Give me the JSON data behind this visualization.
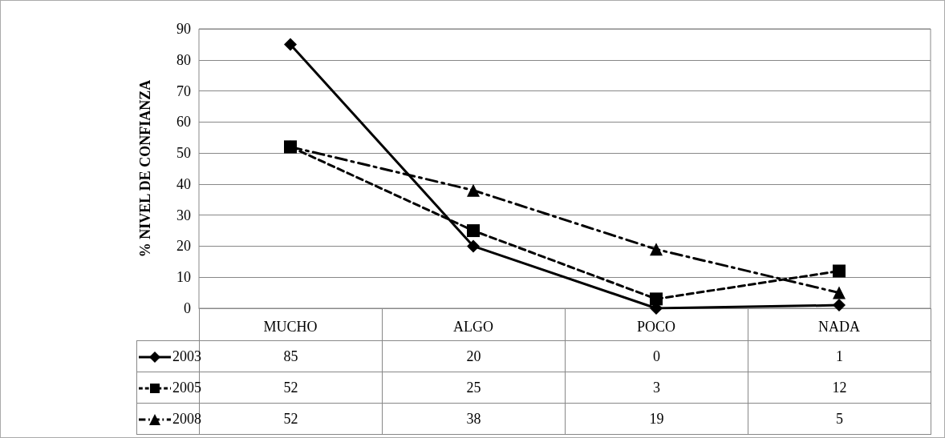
{
  "chart_data": {
    "type": "line",
    "ylabel": "% NIVEL DE CONFIANZA",
    "categories": [
      "MUCHO",
      "ALGO",
      "POCO",
      "NADA"
    ],
    "series": [
      {
        "name": "2003",
        "color": "#000000",
        "values": [
          85,
          20,
          0,
          1
        ],
        "marker": "diamond",
        "line_style": "solid"
      },
      {
        "name": "2005",
        "color": "#000000",
        "values": [
          52,
          25,
          3,
          12
        ],
        "marker": "square",
        "line_style": "dashed"
      },
      {
        "name": "2008",
        "color": "#000000",
        "values": [
          52,
          38,
          19,
          5
        ],
        "marker": "triangle",
        "line_style": "dashdot"
      }
    ],
    "ylim": [
      0,
      90
    ],
    "yticks": [
      0,
      10,
      20,
      30,
      40,
      50,
      60,
      70,
      80,
      90
    ],
    "grid": "y",
    "legend": "bottom",
    "data_labels": true
  }
}
